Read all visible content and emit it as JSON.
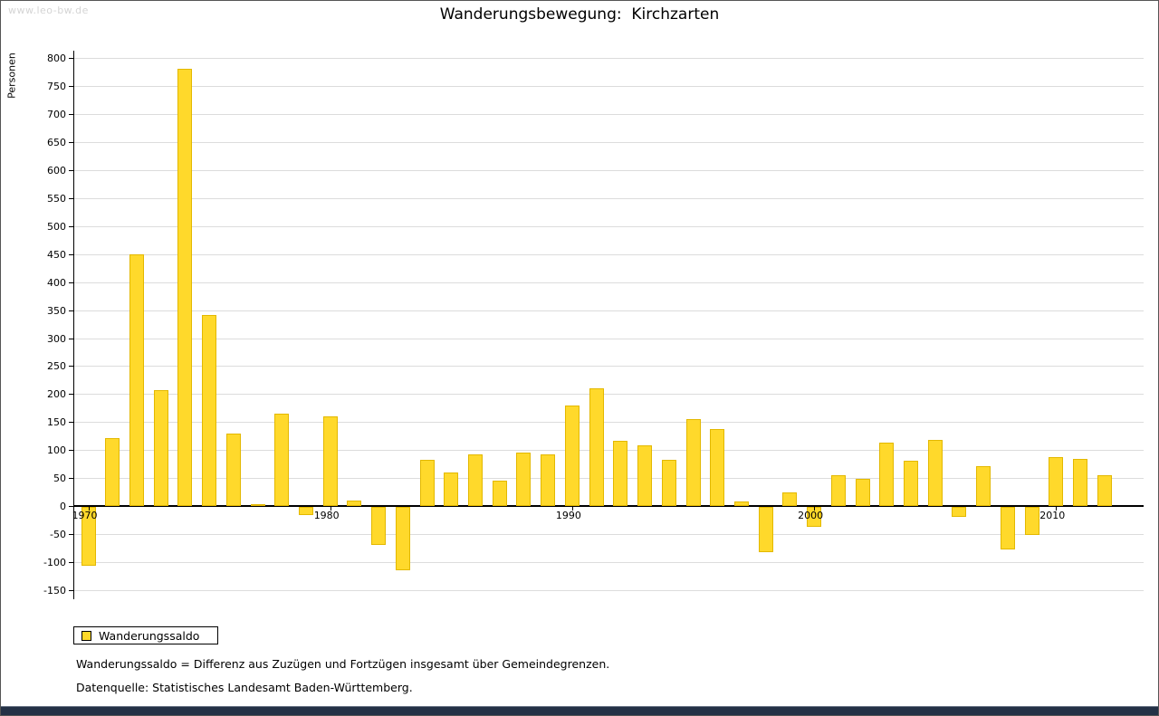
{
  "watermark": "www.leo-bw.de",
  "title": "Wanderungsbewegung:  Kirchzarten",
  "ylabel": "Personen",
  "legend": {
    "label": "Wanderungssaldo"
  },
  "footnotes": [
    "Wanderungssaldo = Differenz aus Zuzügen und Fortzügen insgesamt über Gemeindegrenzen.",
    "Datenquelle: Statistisches Landesamt Baden-Württemberg."
  ],
  "colors": {
    "bar": "#ffd92b",
    "bar_border": "#e3b800",
    "grid": "#dcdcdc",
    "axis": "#000000",
    "footer_bar": "#243146",
    "watermark": "#d4d4d4"
  },
  "chart_data": {
    "type": "bar",
    "title": "Wanderungsbewegung: Kirchzarten",
    "xlabel": "",
    "ylabel": "Personen",
    "ylim": [
      -150,
      800
    ],
    "ytick_step": 50,
    "grid": true,
    "legend_position": "bottom-left",
    "x": [
      1970,
      1971,
      1972,
      1973,
      1974,
      1975,
      1976,
      1977,
      1978,
      1979,
      1980,
      1981,
      1982,
      1983,
      1984,
      1985,
      1986,
      1987,
      1988,
      1989,
      1990,
      1991,
      1992,
      1993,
      1994,
      1995,
      1996,
      1997,
      1998,
      1999,
      2000,
      2001,
      2002,
      2003,
      2004,
      2005,
      2006,
      2007,
      2008,
      2009,
      2010,
      2011,
      2012
    ],
    "xticks": [
      1970,
      1980,
      1990,
      2000,
      2010
    ],
    "series": [
      {
        "name": "Wanderungssaldo",
        "values": [
          -105,
          122,
          450,
          207,
          780,
          341,
          130,
          4,
          165,
          -15,
          160,
          10,
          -68,
          -113,
          83,
          60,
          93,
          46,
          95,
          93,
          180,
          210,
          117,
          109,
          83,
          156,
          138,
          8,
          -80,
          25,
          -35,
          55,
          48,
          113,
          81,
          118,
          -18,
          72,
          -75,
          -50,
          88,
          85,
          55
        ]
      }
    ]
  }
}
